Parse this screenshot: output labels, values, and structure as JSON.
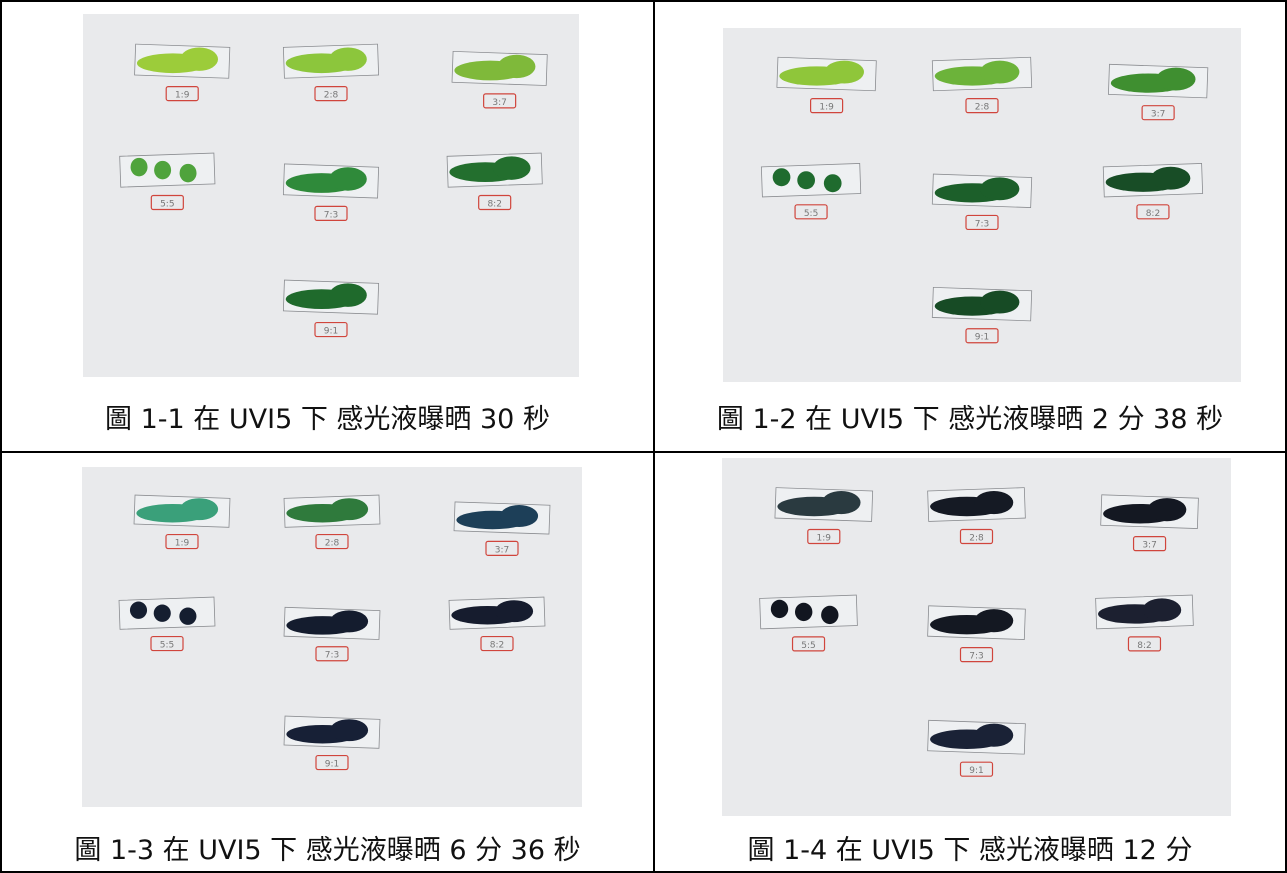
{
  "figures": [
    {
      "caption": "圖 1-1 在 UVI5 下 感光液曝晒 30 秒",
      "slide_labels": [
        "1:9",
        "2:8",
        "3:7",
        "5:5",
        "7:3",
        "8:2",
        "9:1"
      ]
    },
    {
      "caption": "圖 1-2 在 UVI5 下 感光液曝晒 2 分 38 秒",
      "slide_labels": [
        "1:9",
        "2:8",
        "3:7",
        "5:5",
        "7:3",
        "8:2",
        "9:1"
      ]
    },
    {
      "caption": "圖 1-3 在 UVI5 下 感光液曝晒 6 分 36 秒",
      "slide_labels": [
        "1:9",
        "2:8",
        "3:7",
        "5:5",
        "7:3",
        "8:2",
        "9:1"
      ]
    },
    {
      "caption": "圖 1-4 在 UVI5 下 感光液曝晒 12 分",
      "slide_labels": [
        "1:9",
        "2:8",
        "3:7",
        "5:5",
        "7:3",
        "8:2",
        "9:1"
      ]
    }
  ]
}
